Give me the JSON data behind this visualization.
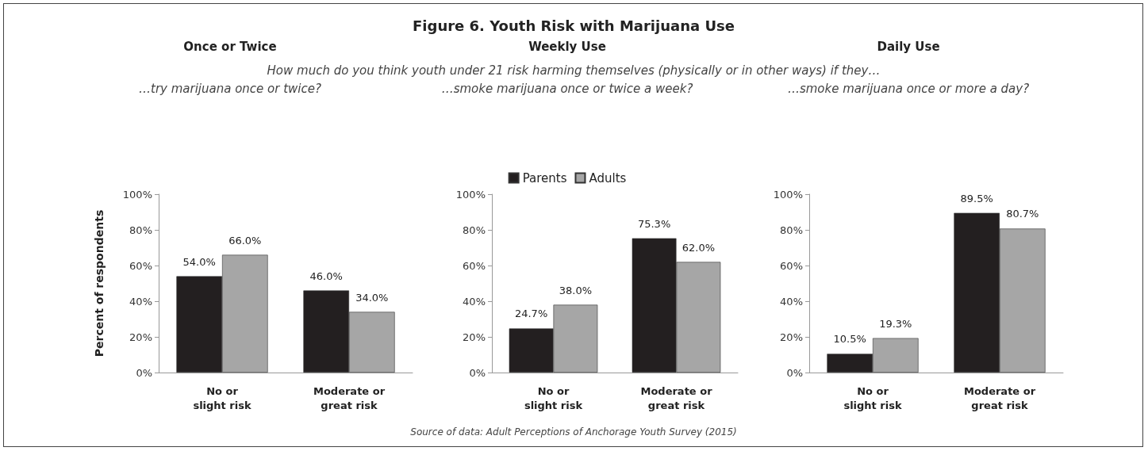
{
  "chart_data": [
    {
      "type": "bar",
      "title": "Once or Twice",
      "subtitle": "…try marijuana once or twice?",
      "ylabel": "Percent of respondents",
      "annotations": [
        "Figure 6. Youth Risk with Marijuana Use",
        "How much do you think youth under 21 risk harming themselves (physically or in other ways) if they…",
        "Source of data:  Adult Perceptions of Anchorage Youth Survey (2015)"
      ],
      "categories": [
        "No or\nslight risk",
        "Moderate or\ngreat risk"
      ],
      "series": [
        {
          "color": "#231f20",
          "values": [
            54.0,
            46.0
          ],
          "value_labels": [
            "54.0%",
            "46.0%"
          ]
        },
        {
          "color": "#a6a6a6",
          "values": [
            66.0,
            34.0
          ],
          "value_labels": [
            "66.0%",
            "34.0%"
          ]
        }
      ],
      "ylim": [
        0,
        100
      ],
      "yticks": [
        {
          "value": 0,
          "label": "0%"
        },
        {
          "value": 20,
          "label": "20%"
        },
        {
          "value": 40,
          "label": "40%"
        },
        {
          "value": 60,
          "label": "60%"
        },
        {
          "value": 80,
          "label": "80%"
        },
        {
          "value": 100,
          "label": "100%"
        }
      ]
    },
    {
      "type": "bar",
      "title": "Weekly Use",
      "subtitle": "…smoke marijuana once or twice a week?",
      "legend": "top",
      "categories": [
        "No or\nslight risk",
        "Moderate or\ngreat risk"
      ],
      "series": [
        {
          "name": "Parents",
          "color": "#231f20",
          "values": [
            24.7,
            75.3
          ],
          "value_labels": [
            "24.7%",
            "75.3%"
          ]
        },
        {
          "name": "Adults",
          "color": "#a6a6a6",
          "values": [
            38.0,
            62.0
          ],
          "value_labels": [
            "38.0%",
            "62.0%"
          ]
        }
      ],
      "ylim": [
        0,
        100
      ],
      "yticks": [
        {
          "value": 0,
          "label": "0%"
        },
        {
          "value": 20,
          "label": "20%"
        },
        {
          "value": 40,
          "label": "40%"
        },
        {
          "value": 60,
          "label": "60%"
        },
        {
          "value": 80,
          "label": "80%"
        },
        {
          "value": 100,
          "label": "100%"
        }
      ]
    },
    {
      "type": "bar",
      "title": "Daily Use",
      "subtitle": "…smoke marijuana once or more a day?",
      "categories": [
        "No or\nslight risk",
        "Moderate or\ngreat risk"
      ],
      "series": [
        {
          "color": "#231f20",
          "values": [
            10.5,
            89.5
          ],
          "value_labels": [
            "10.5%",
            "89.5%"
          ]
        },
        {
          "color": "#a6a6a6",
          "values": [
            19.3,
            80.7
          ],
          "value_labels": [
            "19.3%",
            "80.7%"
          ]
        }
      ],
      "ylim": [
        0,
        100
      ],
      "yticks": [
        {
          "value": 0,
          "label": "0%"
        },
        {
          "value": 20,
          "label": "20%"
        },
        {
          "value": 40,
          "label": "40%"
        },
        {
          "value": 60,
          "label": "60%"
        },
        {
          "value": 80,
          "label": "80%"
        },
        {
          "value": 100,
          "label": "100%"
        }
      ]
    }
  ]
}
